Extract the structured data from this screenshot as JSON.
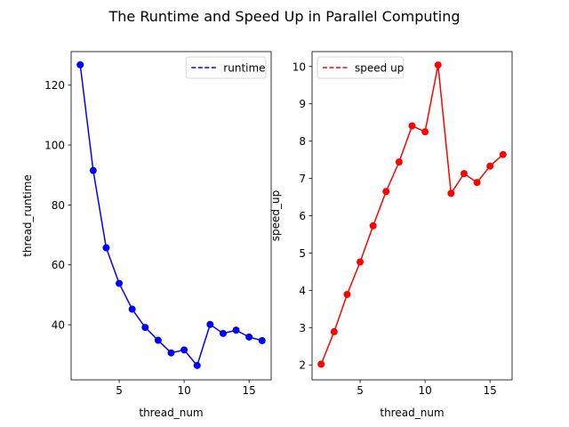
{
  "figure": {
    "title": "The Runtime and Speed Up in Parallel Computing"
  },
  "chart_data": [
    {
      "type": "line",
      "title": "",
      "xlabel": "thread_num",
      "ylabel": "thread_runtime",
      "xlim": [
        1.3,
        16.7
      ],
      "ylim": [
        21.6,
        131.2
      ],
      "xticks": [
        5,
        10,
        15
      ],
      "yticks": [
        40,
        60,
        80,
        100,
        120
      ],
      "grid": false,
      "legend": {
        "position": "upper right",
        "entries": [
          "runtime"
        ]
      },
      "series": [
        {
          "name": "runtime",
          "color": "#0000ff",
          "marker": "o",
          "legend_linestyle": "dashed",
          "x": [
            2,
            3,
            4,
            5,
            6,
            7,
            8,
            9,
            10,
            11,
            12,
            13,
            14,
            15,
            16
          ],
          "y": [
            126.8,
            91.5,
            65.7,
            53.8,
            45.2,
            39.1,
            34.8,
            30.6,
            31.6,
            26.4,
            40.1,
            37.1,
            38.2,
            35.9,
            34.7
          ]
        }
      ]
    },
    {
      "type": "line",
      "title": "",
      "xlabel": "thread_num",
      "ylabel": "speed_up",
      "xlim": [
        1.3,
        16.7
      ],
      "ylim": [
        1.6,
        10.4
      ],
      "xticks": [
        5,
        10,
        15
      ],
      "yticks": [
        2,
        3,
        4,
        5,
        6,
        7,
        8,
        9,
        10
      ],
      "grid": false,
      "legend": {
        "position": "upper left",
        "entries": [
          "speed up"
        ]
      },
      "series": [
        {
          "name": "speed up",
          "color": "#ff0000",
          "marker": "o",
          "legend_linestyle": "dashed",
          "x": [
            2,
            3,
            4,
            5,
            6,
            7,
            8,
            9,
            10,
            11,
            12,
            13,
            14,
            15,
            16
          ],
          "y": [
            2.02,
            2.89,
            3.89,
            4.76,
            5.73,
            6.65,
            7.44,
            8.41,
            8.25,
            10.04,
            6.6,
            7.13,
            6.89,
            7.33,
            7.64
          ]
        }
      ]
    }
  ]
}
